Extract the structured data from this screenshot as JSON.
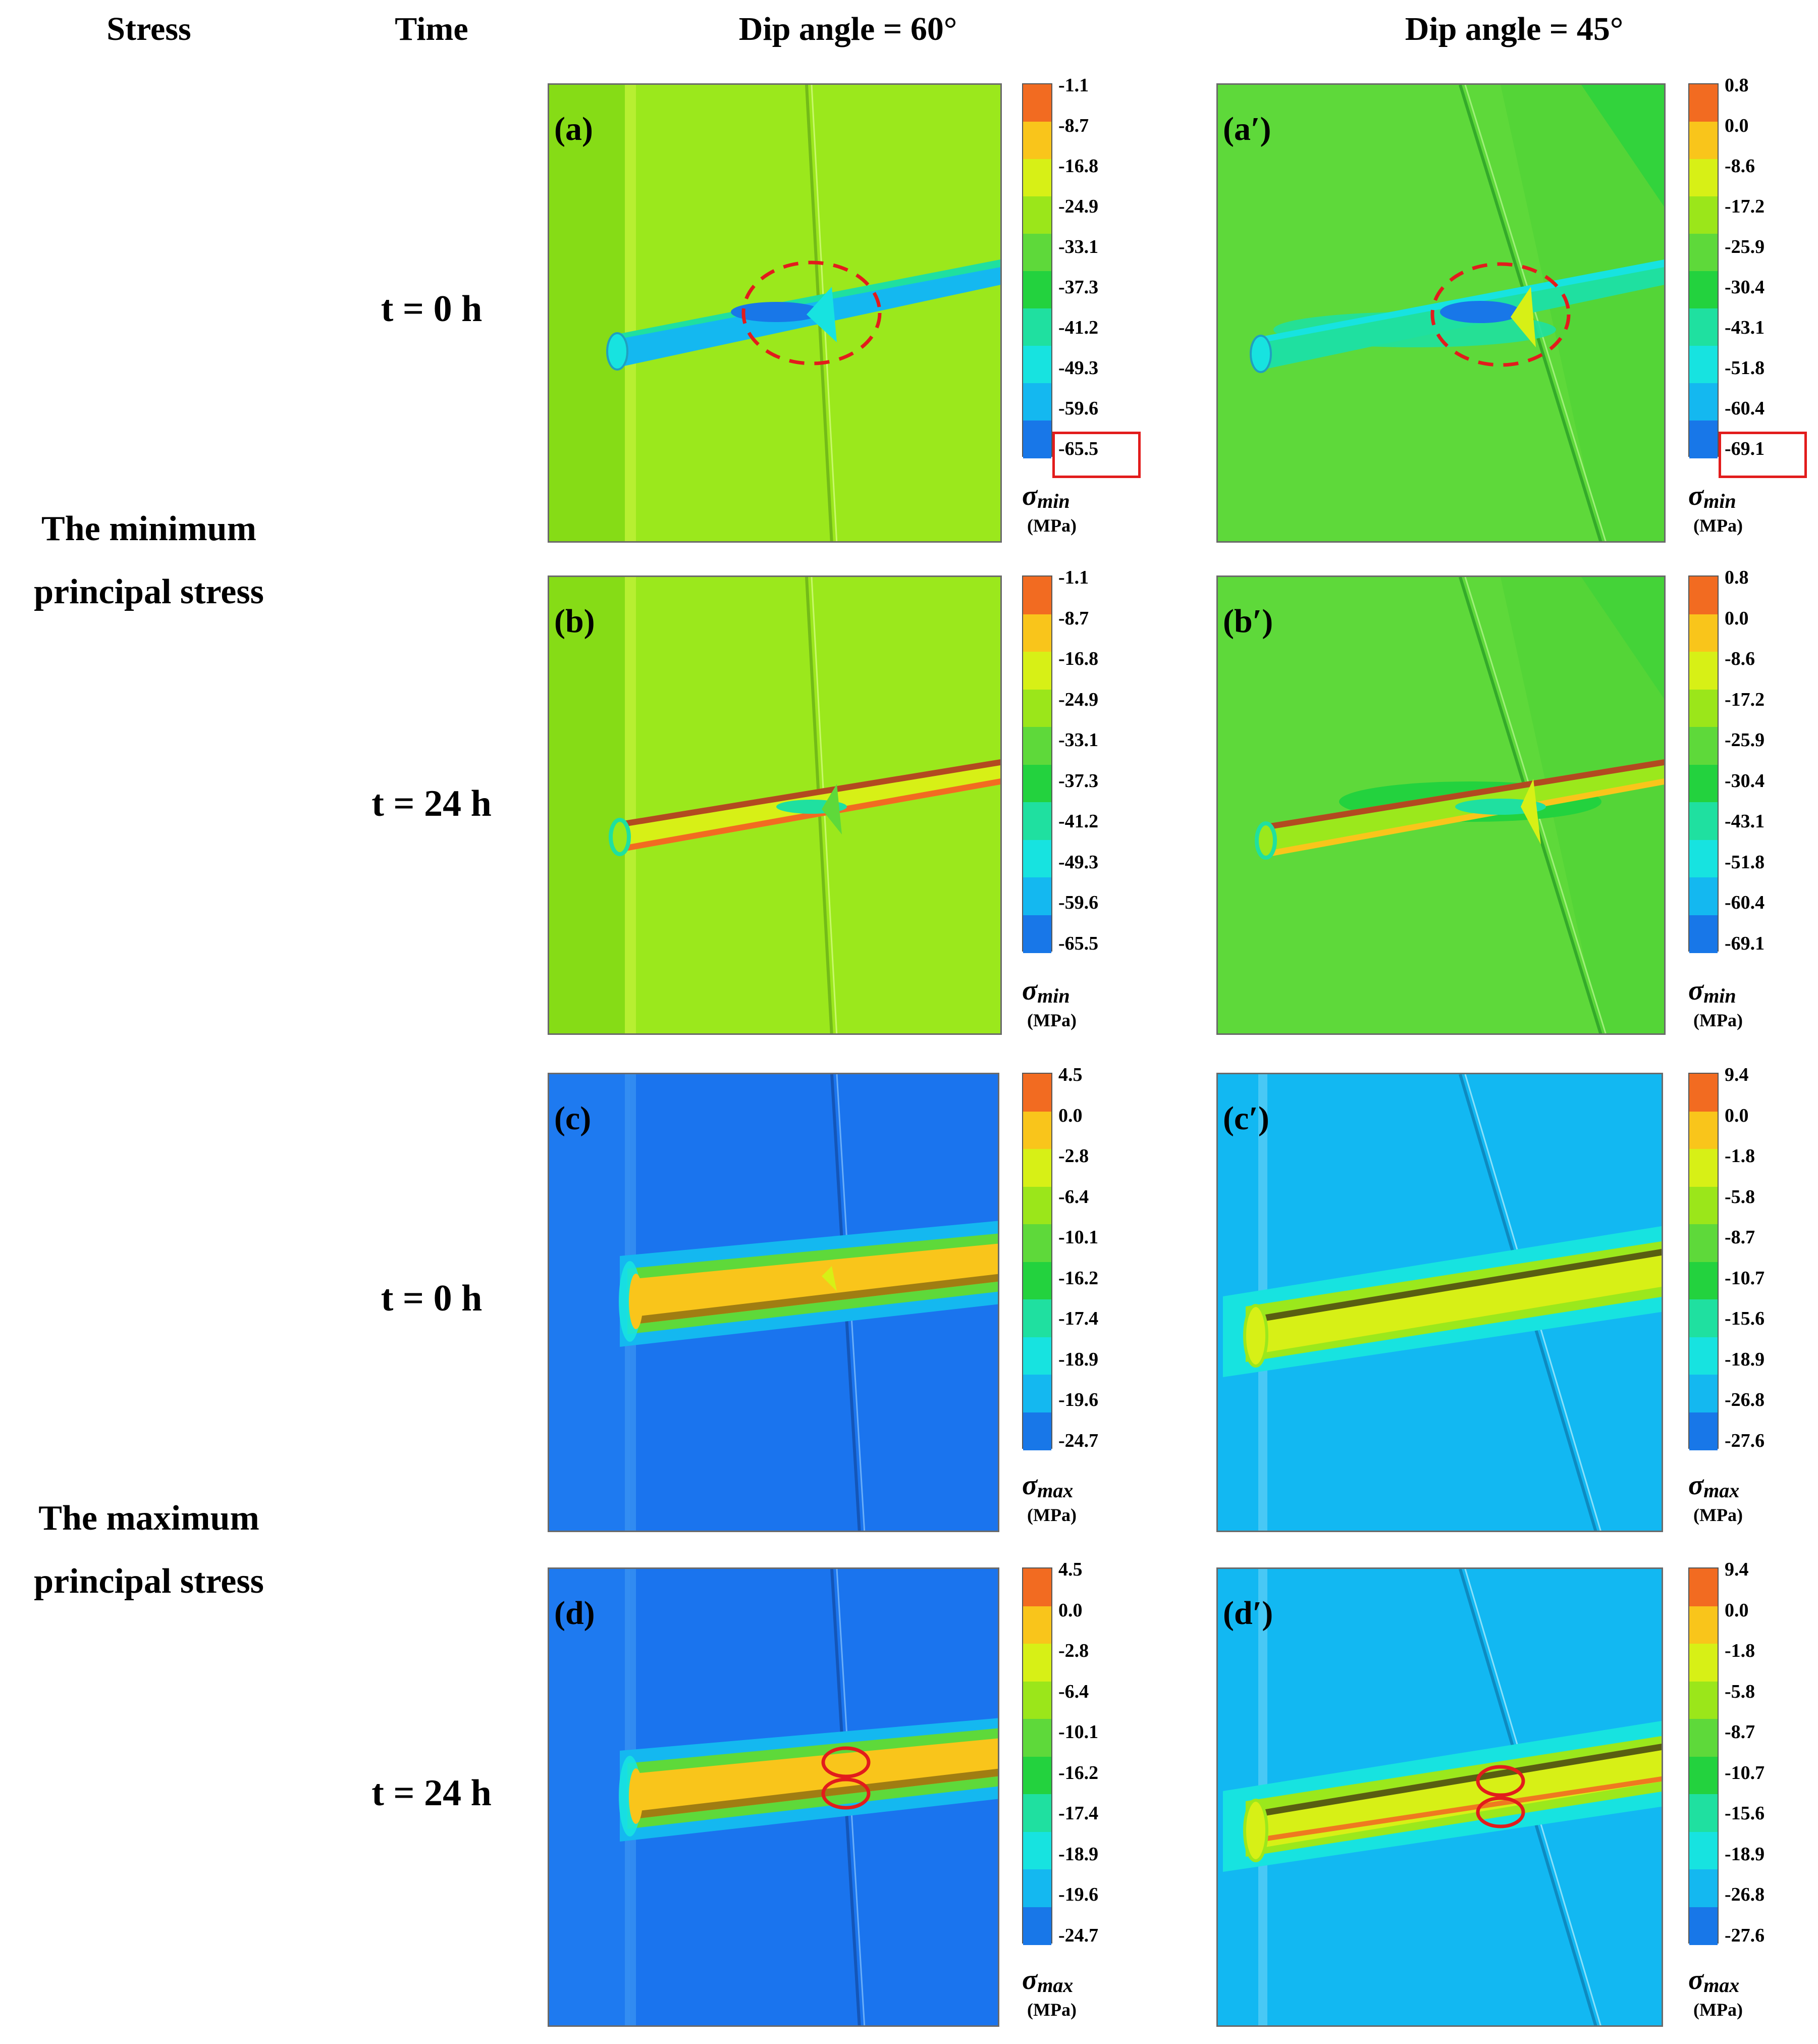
{
  "headers": {
    "stress": "Stress",
    "time": "Time",
    "dip60": "Dip angle = 60°",
    "dip45": "Dip angle = 45°"
  },
  "rows": {
    "min_label_1": "The minimum",
    "min_label_2": "principal stress",
    "max_label_1": "The maximum",
    "max_label_2": "principal stress",
    "t0": "t = 0 h",
    "t24": "t = 24 h"
  },
  "panels": {
    "a": "(a)",
    "a2": "(a′)",
    "b": "(b)",
    "b2": "(b′)",
    "c": "(c)",
    "c2": "(c′)",
    "d": "(d)",
    "d2": "(d′)"
  },
  "colorbars": {
    "min60": [
      "-1.1",
      "-8.7",
      "-16.8",
      "-24.9",
      "-33.1",
      "-37.3",
      "-41.2",
      "-49.3",
      "-59.6",
      "-65.5"
    ],
    "min45": [
      "0.8",
      "0.0",
      "-8.6",
      "-17.2",
      "-25.9",
      "-30.4",
      "-43.1",
      "-51.8",
      "-60.4",
      "-69.1"
    ],
    "max60": [
      "4.5",
      "0.0",
      "-2.8",
      "-6.4",
      "-10.1",
      "-16.2",
      "-17.4",
      "-18.9",
      "-19.6",
      "-24.7"
    ],
    "max45": [
      "9.4",
      "0.0",
      "-1.8",
      "-5.8",
      "-8.7",
      "-10.7",
      "-15.6",
      "-18.9",
      "-26.8",
      "-27.6"
    ]
  },
  "legend": {
    "sigma_min": "σ",
    "sigma_min_sub": "min",
    "sigma_max": "σ",
    "sigma_max_sub": "max",
    "unit": "(MPa)"
  },
  "colors": {
    "scale": [
      "#f26b21",
      "#f9c51b",
      "#d7f016",
      "#9be61a",
      "#5ed93a",
      "#23d23e",
      "#1fe0a0",
      "#17e3e0",
      "#14b8f0",
      "#1877e8"
    ],
    "min_bg_60": "#9be81c",
    "min_bg_45": "#5ed93a",
    "max_bg_60": "#1a74ee",
    "max_bg_45": "#12b8f2",
    "highlight": "#e21c1c"
  }
}
